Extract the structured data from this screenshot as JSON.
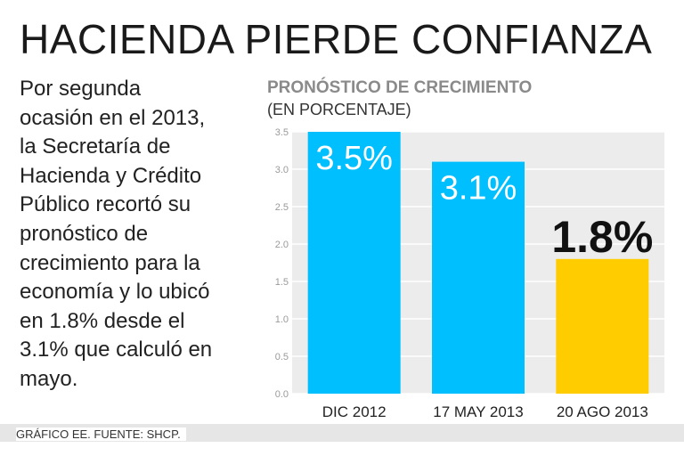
{
  "header": {
    "title": "HACIENDA PIERDE CONFIANZA"
  },
  "description": "Por segunda\nocasión en el 2013,\nla Secretaría de\nHacienda y Crédito\nPúblico recortó su\npronóstico de\ncrecimiento para la\neconomía y lo ubicó\nen 1.8% desde el\n3.1% que calculó en\nmayo.",
  "footer": {
    "source": "GRÁFICO EE. FUENTE: SHCP."
  },
  "chart_data": {
    "type": "bar",
    "title": "PRONÓSTICO DE CRECIMIENTO",
    "subtitle": "(EN PORCENTAJE)",
    "categories": [
      "DIC 2012",
      "17 MAY 2013",
      "20 AGO 2013"
    ],
    "values": [
      3.5,
      3.1,
      1.8
    ],
    "data_labels": [
      "3.5%",
      "3.1%",
      "1.8%"
    ],
    "bar_colors": [
      "#00bfff",
      "#00bfff",
      "#ffcc00"
    ],
    "yticks": [
      "0.0",
      "0.5",
      "1.0",
      "1.5",
      "2.0",
      "2.5",
      "3.0",
      "3.5"
    ],
    "ylim": [
      0,
      3.5
    ],
    "xlabel": "",
    "ylabel": "",
    "grid": true,
    "legend": "none"
  }
}
